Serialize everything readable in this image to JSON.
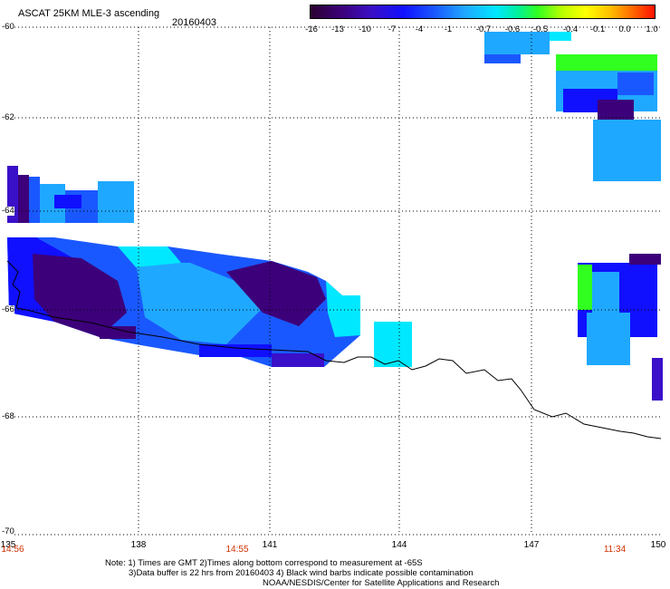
{
  "header": {
    "title": "ASCAT 25KM MLE-3 ascending",
    "date": "20160403"
  },
  "colorbar": {
    "ticks": [
      "-16",
      "-13",
      "-10",
      "-7",
      "-4",
      "-1",
      "-0.7",
      "-0.6",
      "-0.5",
      "-0.4",
      "-0.1",
      "0.0",
      "1.0"
    ],
    "colors": [
      "#2a0030",
      "#3c007a",
      "#3a10c8",
      "#1010ff",
      "#1a58ff",
      "#1fa8ff",
      "#00e8ff",
      "#00f0a0",
      "#30ff20",
      "#b8ff00",
      "#ffff00",
      "#ffc000",
      "#ff1000"
    ]
  },
  "axes": {
    "lat_labels": [
      "-60",
      "-62",
      "-64",
      "-66",
      "-68",
      "-70"
    ],
    "lon_labels": [
      "135",
      "138",
      "141",
      "144",
      "147",
      "150"
    ],
    "time_labels": [
      "14:56",
      "14:55",
      "11:34"
    ]
  },
  "notes": {
    "line1": "Note: 1) Times are GMT 2)Times along bottom correspond to measurement at -65S",
    "line2": "3)Data buffer is 22 hrs from 20160403 4) Black wind barbs indicate possible contamination",
    "line3": "NOAA/NESDIS/Center for Satellite Applications and Research"
  }
}
